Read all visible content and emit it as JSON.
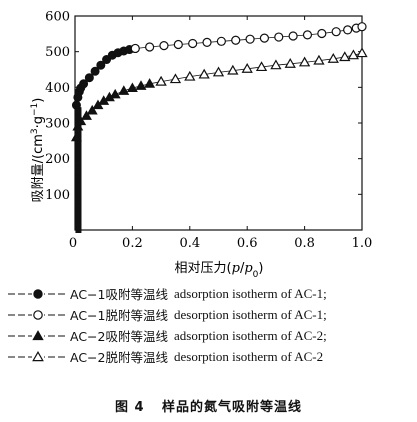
{
  "chart_data": {
    "type": "scatter",
    "xlabel_parts": [
      "相对压力(",
      "p",
      "/",
      "p",
      "0",
      ")"
    ],
    "ylabel_parts": [
      "吸附量/(cm",
      "3",
      "·g",
      "−1",
      ")"
    ],
    "xlim": [
      0,
      1.0
    ],
    "ylim": [
      0,
      600
    ],
    "x_ticks": [
      0,
      0.2,
      0.4,
      0.6,
      0.8,
      1.0
    ],
    "x_tick_labels": [
      "0",
      "0.2",
      "0.4",
      "0.6",
      "0.8",
      "1.0"
    ],
    "y_ticks": [
      100,
      200,
      300,
      400,
      500,
      600
    ],
    "y_tick_labels": [
      "100",
      "200",
      "300",
      "400",
      "500",
      "600"
    ],
    "series": [
      {
        "marker": "filled-circle",
        "x": [
          0.005,
          0.01,
          0.015,
          0.02,
          0.03,
          0.05,
          0.07,
          0.09,
          0.11,
          0.13,
          0.15,
          0.17,
          0.19,
          0.21
        ],
        "y": [
          350,
          372,
          388,
          398,
          410,
          427,
          445,
          462,
          478,
          490,
          497,
          502,
          506,
          509
        ]
      },
      {
        "marker": "open-circle",
        "x": [
          0.21,
          0.26,
          0.31,
          0.36,
          0.41,
          0.46,
          0.51,
          0.56,
          0.61,
          0.66,
          0.71,
          0.76,
          0.81,
          0.86,
          0.91,
          0.95,
          0.98,
          1.0
        ],
        "y": [
          509,
          513,
          517,
          520,
          523,
          526,
          529,
          532,
          535,
          538,
          541,
          544,
          547,
          551,
          556,
          561,
          566,
          570
        ]
      },
      {
        "marker": "filled-triangle",
        "x": [
          0.005,
          0.01,
          0.02,
          0.04,
          0.06,
          0.08,
          0.1,
          0.12,
          0.14,
          0.17,
          0.2,
          0.23,
          0.26,
          0.3
        ],
        "y": [
          260,
          290,
          305,
          320,
          335,
          350,
          362,
          372,
          380,
          390,
          398,
          404,
          410,
          416
        ]
      },
      {
        "marker": "open-triangle",
        "x": [
          0.3,
          0.35,
          0.4,
          0.45,
          0.5,
          0.55,
          0.6,
          0.65,
          0.7,
          0.75,
          0.8,
          0.85,
          0.9,
          0.94,
          0.97,
          1.0
        ],
        "y": [
          416,
          423,
          430,
          436,
          442,
          447,
          452,
          457,
          462,
          466,
          470,
          475,
          480,
          485,
          490,
          496
        ]
      }
    ],
    "legend": [
      {
        "marker": "filled-circle",
        "cn": "AC−1吸附等温线",
        "en": "adsorption isotherm of AC-1;"
      },
      {
        "marker": "open-circle",
        "cn": "AC−1脱附等温线",
        "en": "desorption isotherm of AC-1;"
      },
      {
        "marker": "filled-triangle",
        "cn": "AC−2吸附等温线",
        "en": "adsorption isotherm of AC-2;"
      },
      {
        "marker": "open-triangle",
        "cn": "AC−2脱附等温线",
        "en": "desorption isotherm of AC-2"
      }
    ],
    "legend_placement": "bottom",
    "grid": false
  },
  "caption": {
    "fig": "图 4",
    "text": "样品的氮气吸附等温线"
  }
}
